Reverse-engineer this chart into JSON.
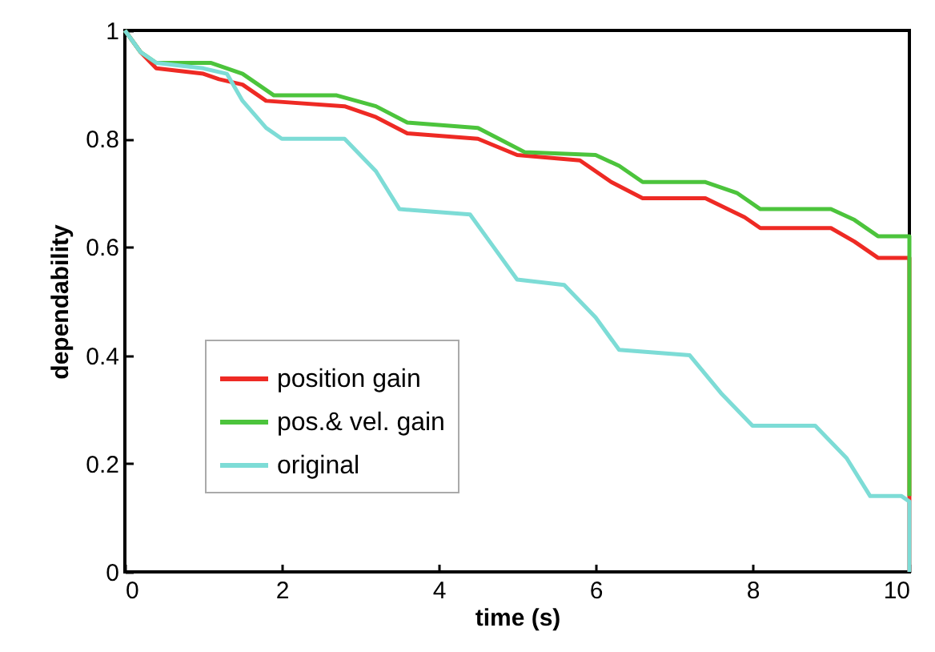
{
  "chart_data": {
    "type": "line",
    "xlabel": "time (s)",
    "ylabel": "dependability",
    "xlim": [
      0,
      10
    ],
    "ylim": [
      0,
      1
    ],
    "xticks": [
      0,
      2,
      4,
      6,
      8,
      10
    ],
    "yticks": [
      0,
      0.2,
      0.4,
      0.6,
      0.8,
      1
    ],
    "grid": false,
    "legend": "bottom left",
    "line_style": "solid",
    "series": [
      {
        "name": "position gain",
        "color": "#ee2a24",
        "x": [
          0,
          0.2,
          0.4,
          1,
          1.2,
          1.5,
          1.8,
          2.8,
          3.2,
          3.6,
          4.5,
          5,
          5.8,
          6.2,
          6.6,
          7.4,
          7.9,
          8.1,
          9,
          9.3,
          9.6,
          10,
          10
        ],
        "values": [
          1,
          0.96,
          0.93,
          0.92,
          0.91,
          0.9,
          0.87,
          0.86,
          0.84,
          0.81,
          0.8,
          0.77,
          0.76,
          0.72,
          0.69,
          0.69,
          0.655,
          0.635,
          0.635,
          0.61,
          0.58,
          0.58,
          0
        ]
      },
      {
        "name": "pos.& vel. gain",
        "color": "#4cc43c",
        "x": [
          0,
          0.2,
          0.4,
          1.1,
          1.5,
          1.9,
          2.7,
          3.2,
          3.6,
          4.5,
          4.9,
          5.1,
          6,
          6.3,
          6.6,
          7.4,
          7.8,
          8.1,
          9,
          9.3,
          9.6,
          10,
          10
        ],
        "values": [
          1,
          0.96,
          0.94,
          0.94,
          0.92,
          0.88,
          0.88,
          0.86,
          0.83,
          0.82,
          0.79,
          0.775,
          0.77,
          0.75,
          0.72,
          0.72,
          0.7,
          0.67,
          0.67,
          0.65,
          0.62,
          0.62,
          0.14
        ]
      },
      {
        "name": "original",
        "color": "#7ddcd6",
        "x": [
          0,
          0.2,
          0.4,
          1,
          1.3,
          1.5,
          1.8,
          2,
          2.8,
          3.2,
          3.5,
          4.4,
          4.7,
          5,
          5.6,
          6,
          6.3,
          7.2,
          7.6,
          8,
          8.8,
          9.2,
          9.5,
          9.9,
          10,
          10
        ],
        "values": [
          1,
          0.96,
          0.94,
          0.93,
          0.92,
          0.87,
          0.82,
          0.8,
          0.8,
          0.74,
          0.67,
          0.66,
          0.6,
          0.54,
          0.53,
          0.47,
          0.41,
          0.4,
          0.33,
          0.27,
          0.27,
          0.21,
          0.14,
          0.14,
          0.13,
          0
        ]
      }
    ]
  }
}
